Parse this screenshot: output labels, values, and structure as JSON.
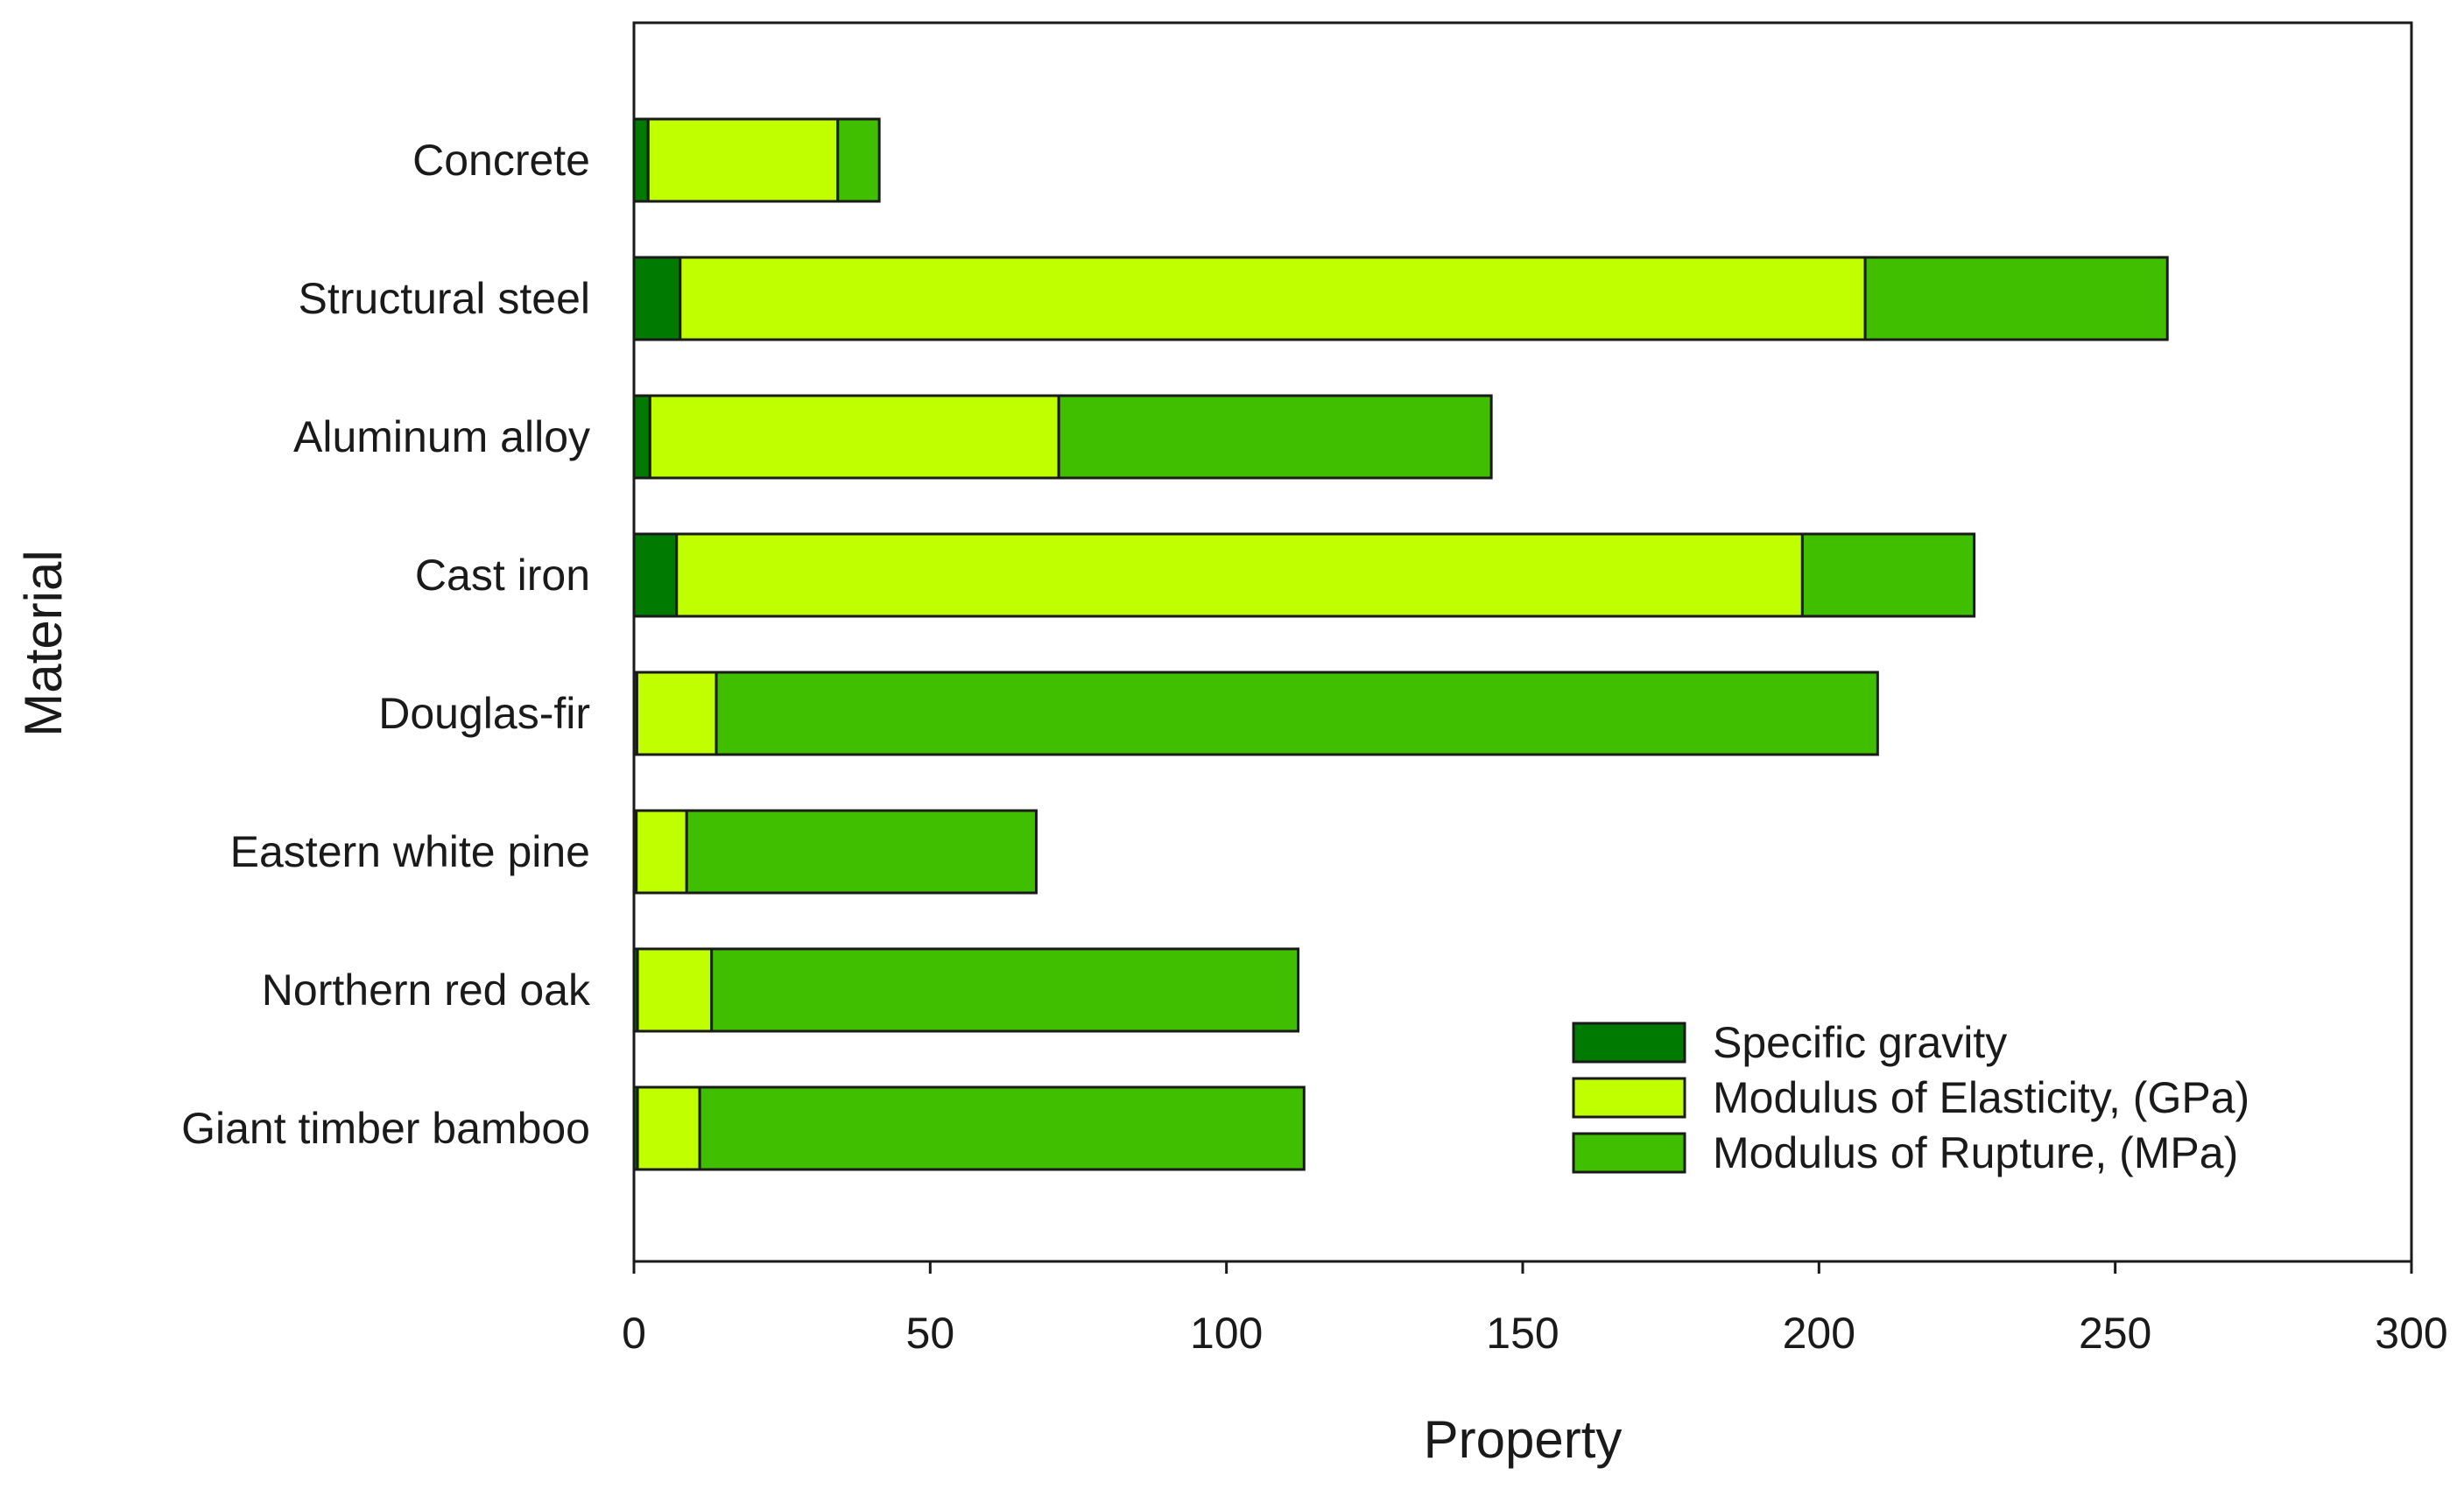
{
  "chart_data": {
    "type": "bar",
    "orientation": "horizontal",
    "stacked": true,
    "title": "",
    "xlabel": "Property",
    "ylabel": "Material",
    "xlim": [
      0,
      300
    ],
    "xticks": [
      0,
      50,
      100,
      150,
      200,
      250,
      300
    ],
    "grid": false,
    "legend_position": "bottom-right",
    "categories": [
      "Concrete",
      "Structural steel",
      "Aluminum alloy",
      "Cast iron",
      "Douglas-fir",
      "Eastern white pine",
      "Northern red oak",
      "Giant timber bamboo"
    ],
    "series": [
      {
        "name": "Specific gravity",
        "color": "#007a00",
        "values": [
          2.4,
          7.8,
          2.7,
          7.2,
          0.5,
          0.4,
          0.6,
          0.6
        ]
      },
      {
        "name": "Modulus of Elasticity, (GPa)",
        "color": "#bfff00",
        "values": [
          32,
          200,
          69,
          190,
          13.4,
          8.5,
          12.5,
          10.5
        ]
      },
      {
        "name": "Modulus of Rupture, (MPa)",
        "color": "#40bf00",
        "values": [
          7,
          51,
          73,
          29,
          196,
          59,
          99,
          102
        ]
      }
    ]
  }
}
